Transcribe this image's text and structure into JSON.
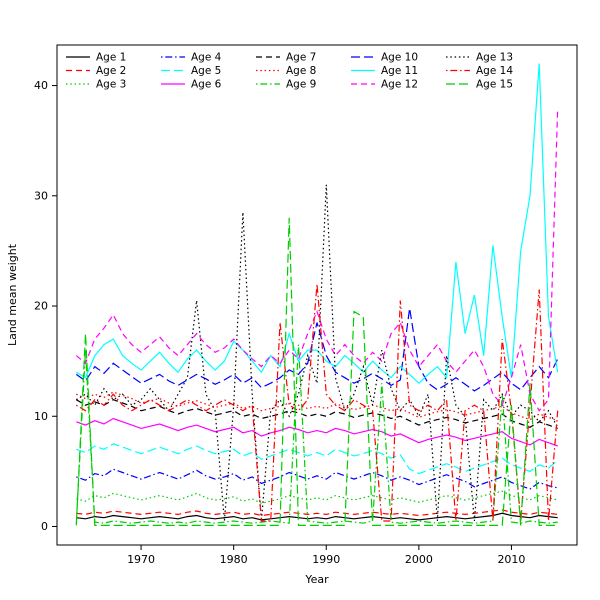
{
  "figure": {
    "xlabel": "Year",
    "ylabel": "Land mean weight"
  },
  "chart_data": {
    "type": "line",
    "title": "",
    "xlabel": "Year",
    "ylabel": "Land mean weight",
    "xlim": [
      1963,
      2015
    ],
    "ylim": [
      0,
      42
    ],
    "x_ticks": [
      1970,
      1980,
      1990,
      2000,
      2010
    ],
    "y_ticks": [
      0,
      10,
      20,
      30,
      40
    ],
    "grid": false,
    "legend_position": "top-inside",
    "legend_columns": 5,
    "x": [
      1963,
      1964,
      1965,
      1966,
      1967,
      1968,
      1969,
      1970,
      1971,
      1972,
      1973,
      1974,
      1975,
      1976,
      1977,
      1978,
      1979,
      1980,
      1981,
      1982,
      1983,
      1984,
      1985,
      1986,
      1987,
      1988,
      1989,
      1990,
      1991,
      1992,
      1993,
      1994,
      1995,
      1996,
      1997,
      1998,
      1999,
      2000,
      2001,
      2002,
      2003,
      2004,
      2005,
      2006,
      2007,
      2008,
      2009,
      2010,
      2011,
      2012,
      2013,
      2014,
      2015
    ],
    "series": [
      {
        "name": "Age 1",
        "color": "#000000",
        "linestyle": "solid",
        "values": [
          0.8,
          0.7,
          0.9,
          0.8,
          1.0,
          0.9,
          0.8,
          0.7,
          0.8,
          0.9,
          0.8,
          0.7,
          0.9,
          1.0,
          0.8,
          0.7,
          0.8,
          0.9,
          0.7,
          0.8,
          0.6,
          0.7,
          0.8,
          0.9,
          0.8,
          0.7,
          0.8,
          0.7,
          0.9,
          0.8,
          0.7,
          0.8,
          0.9,
          0.8,
          0.7,
          0.8,
          0.7,
          0.6,
          0.7,
          0.8,
          0.9,
          0.8,
          0.7,
          0.8,
          0.9,
          1.0,
          1.2,
          1.0,
          0.9,
          0.8,
          1.0,
          0.9,
          0.8
        ]
      },
      {
        "name": "Age 2",
        "color": "#FF0000",
        "linestyle": "dashed",
        "values": [
          1.2,
          1.1,
          1.3,
          1.2,
          1.4,
          1.3,
          1.2,
          1.1,
          1.2,
          1.3,
          1.2,
          1.1,
          1.3,
          1.4,
          1.2,
          1.1,
          1.2,
          1.3,
          1.1,
          1.2,
          1.0,
          1.1,
          1.2,
          1.3,
          1.2,
          1.1,
          1.2,
          1.1,
          1.3,
          1.2,
          1.1,
          1.2,
          1.3,
          1.2,
          1.1,
          1.2,
          1.1,
          1.0,
          1.1,
          1.2,
          1.3,
          1.2,
          1.1,
          1.2,
          1.3,
          1.4,
          1.5,
          1.3,
          1.2,
          1.1,
          1.3,
          1.2,
          1.1
        ]
      },
      {
        "name": "Age 3",
        "color": "#00CD00",
        "linestyle": "dotted",
        "values": [
          2.5,
          2.3,
          2.8,
          2.6,
          3.0,
          2.8,
          2.6,
          2.4,
          2.6,
          2.8,
          2.6,
          2.4,
          2.7,
          3.0,
          2.6,
          2.4,
          2.5,
          2.7,
          2.3,
          2.5,
          2.1,
          2.3,
          2.5,
          2.8,
          2.6,
          2.4,
          2.6,
          2.4,
          2.8,
          2.6,
          2.4,
          2.6,
          2.8,
          2.6,
          2.4,
          2.6,
          2.4,
          2.2,
          2.4,
          2.6,
          2.8,
          2.6,
          2.4,
          2.6,
          2.8,
          3.0,
          3.2,
          2.8,
          2.6,
          2.4,
          2.8,
          2.6,
          2.4
        ]
      },
      {
        "name": "Age 4",
        "color": "#0000FF",
        "linestyle": "dotdash",
        "values": [
          4.5,
          4.2,
          4.8,
          4.6,
          5.2,
          4.9,
          4.6,
          4.3,
          4.6,
          4.9,
          4.6,
          4.3,
          4.7,
          5.1,
          4.6,
          4.3,
          4.5,
          4.8,
          4.2,
          4.5,
          3.9,
          4.2,
          4.5,
          4.9,
          4.6,
          4.3,
          4.6,
          4.3,
          4.9,
          4.6,
          4.3,
          4.6,
          4.9,
          4.6,
          4.2,
          4.5,
          4.2,
          3.8,
          4.1,
          4.4,
          4.7,
          4.4,
          4.1,
          3.6,
          3.9,
          4.2,
          4.5,
          4.0,
          3.7,
          3.4,
          4.0,
          3.7,
          3.5
        ]
      },
      {
        "name": "Age 5",
        "color": "#00FFFF",
        "linestyle": "longdash",
        "values": [
          7.0,
          6.7,
          7.3,
          7.0,
          7.5,
          7.2,
          6.9,
          6.6,
          6.9,
          7.2,
          6.9,
          6.6,
          7.0,
          7.3,
          6.9,
          6.6,
          6.8,
          7.0,
          6.4,
          6.7,
          6.1,
          6.4,
          6.7,
          7.0,
          6.7,
          6.4,
          6.7,
          6.4,
          7.0,
          6.7,
          6.4,
          6.6,
          6.9,
          6.6,
          6.2,
          6.5,
          5.2,
          4.8,
          5.1,
          5.4,
          5.7,
          5.4,
          5.0,
          5.3,
          5.6,
          5.9,
          6.2,
          5.6,
          5.3,
          5.0,
          5.6,
          5.3,
          6.0
        ]
      },
      {
        "name": "Age 6",
        "color": "#FF00FF",
        "linestyle": "solid",
        "values": [
          9.5,
          9.2,
          9.6,
          9.3,
          9.8,
          9.5,
          9.2,
          8.9,
          9.1,
          9.3,
          9.0,
          8.7,
          9.0,
          9.2,
          8.9,
          8.6,
          8.8,
          9.0,
          8.5,
          8.7,
          8.2,
          8.5,
          8.7,
          9.0,
          8.8,
          8.5,
          8.7,
          8.5,
          8.9,
          8.7,
          8.4,
          8.6,
          8.8,
          8.6,
          8.2,
          8.4,
          8.0,
          7.6,
          7.9,
          8.1,
          8.3,
          8.1,
          7.8,
          8.0,
          8.2,
          8.4,
          8.6,
          8.0,
          7.7,
          7.4,
          7.9,
          7.6,
          7.3
        ]
      },
      {
        "name": "Age 7",
        "color": "#000000",
        "linestyle": "dashed",
        "values": [
          11.5,
          11.0,
          11.3,
          11.0,
          11.5,
          11.2,
          10.9,
          10.5,
          10.7,
          10.9,
          10.5,
          10.2,
          10.5,
          10.7,
          10.4,
          10.1,
          10.3,
          10.5,
          10.0,
          10.2,
          9.8,
          10.0,
          10.2,
          10.5,
          10.3,
          10.0,
          10.2,
          10.0,
          10.4,
          10.2,
          9.9,
          10.1,
          10.3,
          10.1,
          9.8,
          10.0,
          9.6,
          9.2,
          9.5,
          9.7,
          9.9,
          9.7,
          9.4,
          9.6,
          9.8,
          10.0,
          10.2,
          9.6,
          9.3,
          9.0,
          9.5,
          9.2,
          8.9
        ]
      },
      {
        "name": "Age 8",
        "color": "#FF0000",
        "linestyle": "dotted",
        "values": [
          12.0,
          11.6,
          12.0,
          11.7,
          12.2,
          11.9,
          11.6,
          11.2,
          11.4,
          11.6,
          11.2,
          10.9,
          11.2,
          11.4,
          11.1,
          10.8,
          11.0,
          11.2,
          10.7,
          10.9,
          10.5,
          10.7,
          10.9,
          11.2,
          11.0,
          10.7,
          10.9,
          10.7,
          11.1,
          10.9,
          10.6,
          10.8,
          11.0,
          10.8,
          10.5,
          10.7,
          10.3,
          9.9,
          10.2,
          10.4,
          10.6,
          10.4,
          10.1,
          10.3,
          10.5,
          10.7,
          10.9,
          10.3,
          10.0,
          9.7,
          10.2,
          9.9,
          9.6
        ]
      },
      {
        "name": "Age 9",
        "color": "#00CD00",
        "linestyle": "dotdash",
        "values": [
          0.3,
          16.0,
          0.4,
          0.3,
          0.5,
          0.4,
          0.3,
          0.4,
          0.5,
          0.4,
          0.3,
          0.4,
          0.3,
          0.5,
          0.4,
          0.3,
          0.4,
          0.5,
          0.4,
          0.3,
          0.4,
          0.5,
          0.4,
          0.3,
          16.5,
          0.5,
          0.4,
          0.3,
          0.4,
          0.5,
          0.4,
          0.3,
          0.5,
          13.0,
          0.4,
          0.3,
          0.4,
          0.5,
          0.4,
          0.3,
          0.4,
          0.5,
          0.4,
          0.3,
          0.4,
          0.5,
          12.0,
          0.4,
          0.3,
          0.5,
          0.4,
          0.3,
          0.4
        ]
      },
      {
        "name": "Age 10",
        "color": "#0000FF",
        "linestyle": "longdash",
        "values": [
          13.8,
          13.2,
          14.5,
          13.9,
          14.8,
          14.2,
          13.6,
          13.0,
          13.4,
          13.8,
          13.2,
          12.8,
          13.3,
          13.8,
          13.4,
          12.9,
          13.3,
          13.8,
          13.0,
          13.5,
          12.6,
          13.0,
          13.5,
          14.2,
          13.8,
          14.8,
          18.5,
          15.5,
          14.0,
          13.5,
          13.0,
          13.4,
          13.9,
          13.4,
          12.8,
          13.3,
          19.8,
          14.5,
          13.0,
          12.4,
          12.9,
          13.5,
          12.9,
          12.3,
          12.8,
          13.4,
          14.0,
          13.0,
          12.4,
          13.5,
          14.5,
          13.5,
          15.2
        ]
      },
      {
        "name": "Age 11",
        "color": "#00FFFF",
        "linestyle": "solid",
        "values": [
          14.0,
          13.5,
          15.5,
          16.5,
          17.0,
          15.5,
          14.8,
          14.2,
          15.0,
          15.8,
          14.8,
          14.0,
          15.2,
          16.0,
          15.0,
          14.2,
          15.0,
          16.8,
          16.0,
          15.0,
          14.0,
          15.5,
          14.5,
          17.5,
          15.0,
          16.0,
          16.0,
          15.0,
          14.5,
          15.5,
          14.8,
          14.0,
          15.0,
          14.2,
          13.5,
          14.5,
          13.8,
          13.0,
          13.8,
          14.5,
          13.5,
          24.0,
          17.5,
          21.0,
          15.5,
          25.5,
          19.0,
          13.5,
          25.0,
          30.0,
          42.0,
          19.0,
          14.0
        ]
      },
      {
        "name": "Age 12",
        "color": "#FF00FF",
        "linestyle": "dashed",
        "values": [
          15.5,
          14.8,
          17.0,
          18.0,
          19.2,
          17.5,
          16.5,
          15.8,
          16.5,
          17.2,
          16.2,
          15.5,
          16.5,
          17.5,
          16.5,
          15.8,
          16.2,
          17.0,
          16.0,
          15.2,
          14.5,
          15.5,
          14.8,
          16.0,
          15.2,
          17.5,
          19.5,
          17.0,
          15.5,
          16.5,
          15.5,
          14.8,
          15.8,
          15.0,
          17.5,
          18.5,
          16.0,
          14.5,
          15.5,
          16.5,
          15.0,
          14.0,
          15.0,
          16.0,
          14.5,
          12.0,
          11.0,
          13.5,
          16.5,
          12.0,
          10.5,
          11.5,
          38.0
        ]
      },
      {
        "name": "Age 13",
        "color": "#000000",
        "linestyle": "dotted",
        "values": [
          11.5,
          12.0,
          11.0,
          12.5,
          11.5,
          12.0,
          11.0,
          11.5,
          12.5,
          11.5,
          10.5,
          12.0,
          13.5,
          20.5,
          12.0,
          10.5,
          0.5,
          11.0,
          28.5,
          12.0,
          0.5,
          10.5,
          11.5,
          10.0,
          12.0,
          15.5,
          13.0,
          31.0,
          13.5,
          10.5,
          12.0,
          14.5,
          11.0,
          16.0,
          12.5,
          10.5,
          11.5,
          10.0,
          12.0,
          0.5,
          15.5,
          11.0,
          10.0,
          0.5,
          11.5,
          10.5,
          12.0,
          10.0,
          11.0,
          10.5,
          9.5,
          10.5,
          9.0
        ]
      },
      {
        "name": "Age 14",
        "color": "#FF0000",
        "linestyle": "dotdash",
        "values": [
          11.0,
          10.5,
          11.5,
          11.0,
          12.0,
          11.0,
          10.5,
          11.0,
          11.5,
          11.0,
          10.5,
          11.0,
          11.5,
          11.0,
          10.5,
          11.0,
          11.5,
          11.0,
          10.5,
          11.0,
          0.5,
          0.5,
          18.5,
          11.0,
          10.5,
          11.5,
          22.0,
          12.0,
          11.0,
          10.5,
          11.5,
          11.0,
          10.5,
          0.5,
          0.5,
          20.5,
          11.0,
          10.5,
          11.0,
          10.5,
          11.5,
          0.5,
          10.5,
          11.0,
          10.5,
          0.5,
          17.0,
          10.5,
          0.5,
          11.0,
          21.5,
          0.5,
          10.5
        ]
      },
      {
        "name": "Age 15",
        "color": "#00CD00",
        "linestyle": "longdash",
        "values": [
          0.1,
          17.5,
          0.1,
          0.1,
          0.1,
          0.1,
          0.1,
          0.1,
          0.1,
          0.1,
          0.1,
          0.1,
          0.1,
          0.1,
          0.1,
          0.1,
          0.1,
          0.1,
          0.1,
          0.1,
          0.1,
          0.1,
          0.1,
          28.0,
          0.1,
          0.1,
          0.1,
          0.1,
          0.1,
          0.1,
          19.5,
          19.0,
          0.1,
          0.1,
          0.1,
          0.1,
          0.1,
          0.1,
          0.1,
          0.1,
          0.1,
          0.1,
          0.1,
          0.1,
          0.1,
          0.1,
          0.1,
          11.0,
          0.1,
          13.0,
          0.1,
          0.1,
          0.1
        ]
      }
    ]
  }
}
